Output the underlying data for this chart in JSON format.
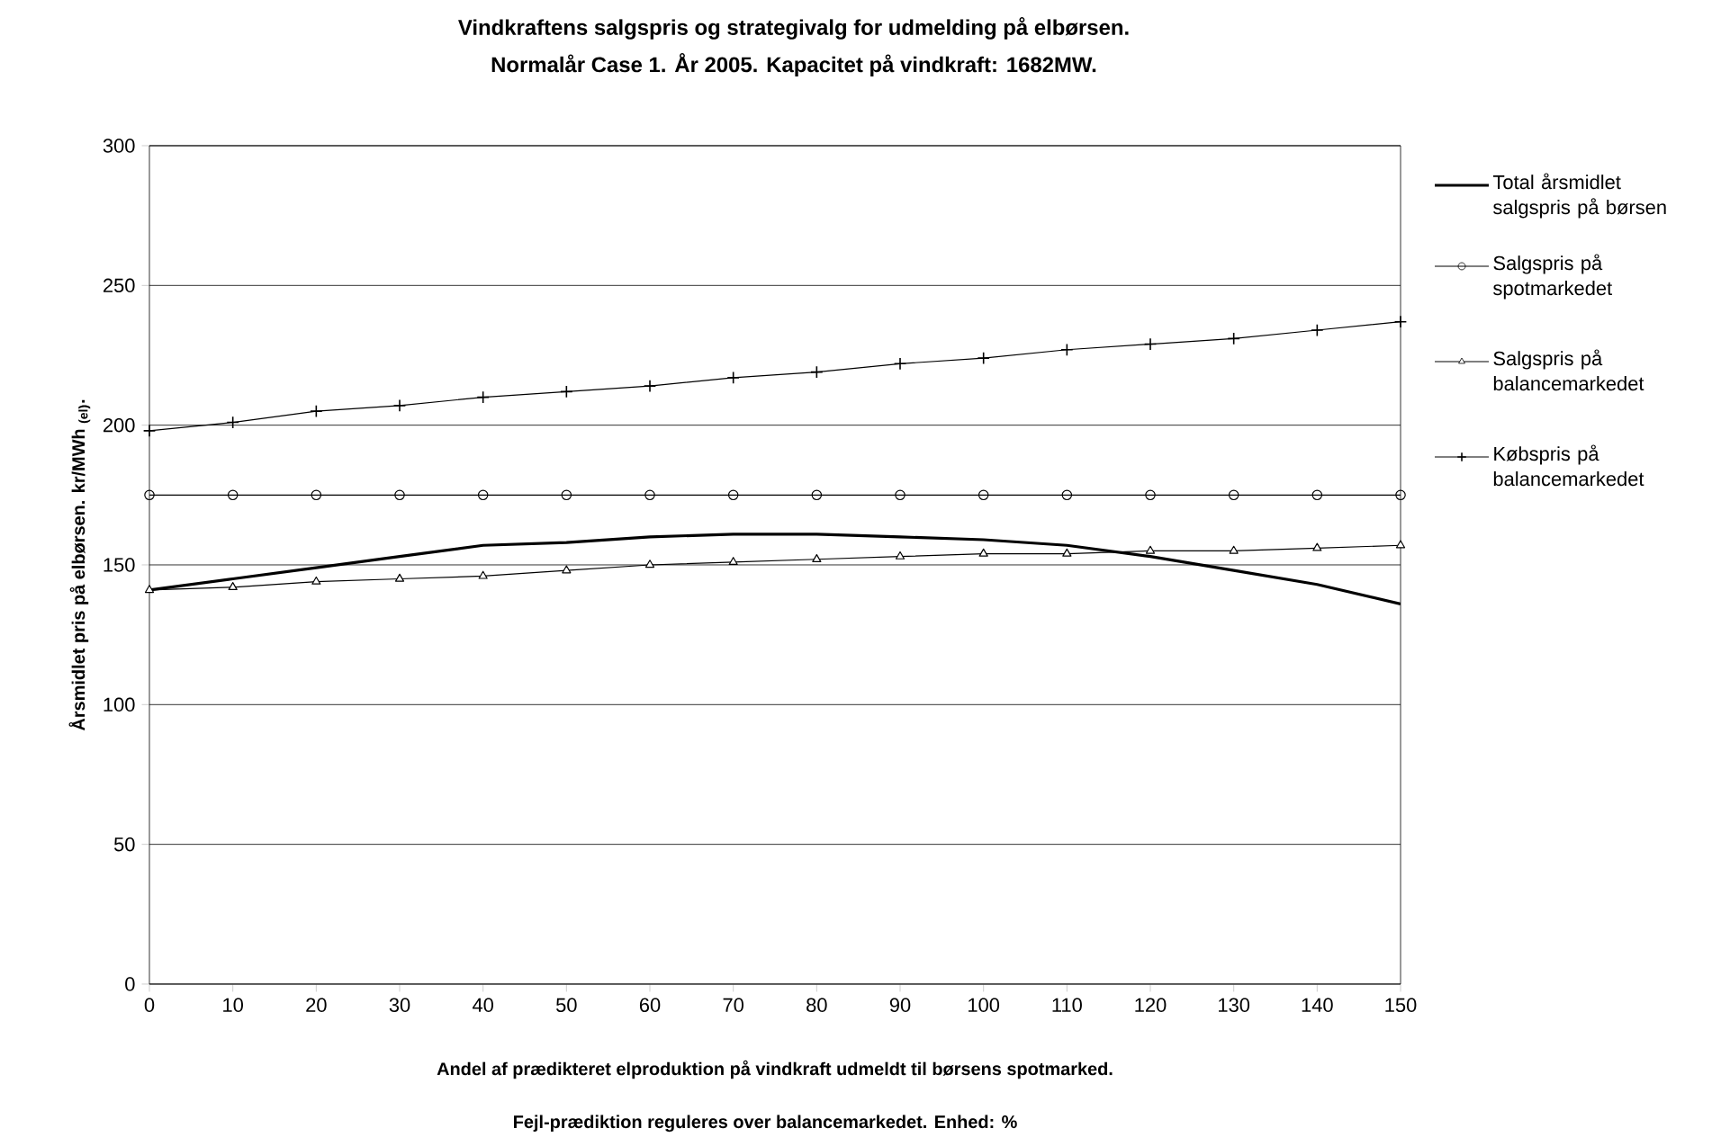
{
  "chart_data": {
    "type": "line",
    "title": "Vindkraftens salgspris  og  strategivalg for udmelding på elbørsen.",
    "subtitle": "Normalår Case 1.  År 2005.          Kapacitet på vindkraft: 1682MW.",
    "xlabel": "Andel af prædikteret elproduktion på vindkraft udmeldt til børsens spotmarked.",
    "ylabel": "Årsmidlet pris på elbørsen. kr/MWh $_{(el)}$.",
    "annotations": [
      "Fejl-prædiktion reguleres over balancemarkedet.                                 Enhed:  %"
    ],
    "x": [
      0,
      10,
      20,
      30,
      40,
      50,
      60,
      70,
      80,
      90,
      100,
      110,
      120,
      130,
      140,
      150
    ],
    "xlim": [
      0,
      150
    ],
    "xticks": [
      0,
      10,
      20,
      30,
      40,
      50,
      60,
      70,
      80,
      90,
      100,
      110,
      120,
      130,
      140,
      150
    ],
    "ylim": [
      0,
      300
    ],
    "yticks": [
      0,
      50,
      100,
      150,
      200,
      250,
      300
    ],
    "grid": "y",
    "legend": "right",
    "series": [
      {
        "name": "Total årsmidlet salgspris på børsen",
        "color": "#000000",
        "marker": "none",
        "values": [
          141,
          145,
          149,
          153,
          157,
          158,
          160,
          161,
          161,
          160,
          159,
          157,
          153,
          148,
          143,
          136
        ]
      },
      {
        "name": "Salgspris på spotmarkedet",
        "color": "#000000",
        "marker": "circle",
        "values": [
          175,
          175,
          175,
          175,
          175,
          175,
          175,
          175,
          175,
          175,
          175,
          175,
          175,
          175,
          175,
          175
        ]
      },
      {
        "name": "Salgspris på balancemarkedet",
        "color": "#000000",
        "marker": "triangle",
        "values": [
          141,
          142,
          144,
          145,
          146,
          148,
          150,
          151,
          152,
          153,
          154,
          154,
          155,
          155,
          156,
          157
        ]
      },
      {
        "name": "Købspris på balancemarkedet",
        "color": "#000000",
        "marker": "cross",
        "values": [
          198,
          201,
          205,
          207,
          210,
          212,
          214,
          217,
          219,
          222,
          224,
          227,
          229,
          231,
          234,
          237
        ]
      }
    ]
  }
}
